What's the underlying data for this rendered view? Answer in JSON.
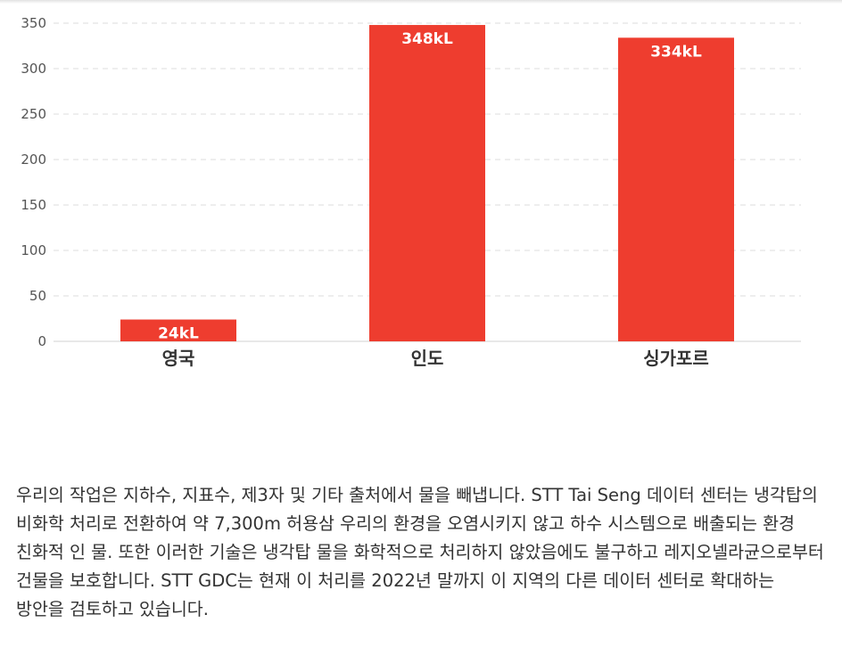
{
  "chart_data": {
    "type": "bar",
    "categories": [
      "영국",
      "인도",
      "싱가포르"
    ],
    "values": [
      24,
      348,
      334
    ],
    "value_labels": [
      "24kL",
      "348kL",
      "334kL"
    ],
    "yticks": [
      "0",
      "50",
      "100",
      "150",
      "200",
      "250",
      "300",
      "350"
    ],
    "ylim": [
      0,
      350
    ],
    "grid": true,
    "bar_color": "#ee3d2f"
  },
  "description": {
    "text": "우리의 작업은 지하수, 지표수, 제3자 및 기타 출처에서 물을 빼냅니다. STT Tai Seng 데이터 센터는 냉각탑의 비화학 처리로 전환하여 약 7,300m 허용삼 우리의 환경을 오염시키지 않고 하수 시스템으로 배출되는 환경 친화적 인 물. 또한 이러한 기술은 냉각탑 물을 화학적으로 처리하지 않았음에도 불구하고 레지오넬라균으로부터 건물을 보호합니다. STT GDC는 현재 이 처리를 2022년 말까지 이 지역의 다른 데이터 센터로 확대하는 방안을 검토하고 있습니다."
  }
}
